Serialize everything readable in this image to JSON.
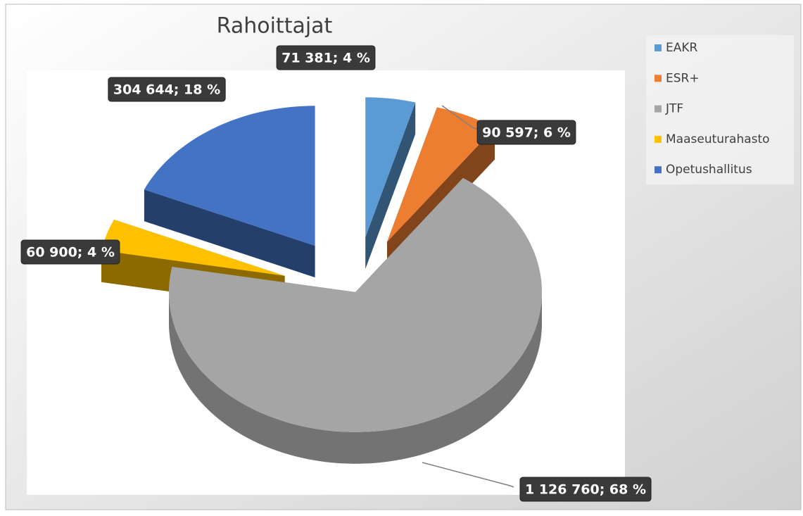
{
  "chart_data": {
    "type": "pie",
    "title": "Rahoittajat",
    "categories": [
      "EAKR",
      "ESR+",
      "JTF",
      "Maaseuturahasto",
      "Opetushallitus"
    ],
    "values": [
      71381,
      90597,
      1126760,
      60900,
      304644
    ],
    "value_labels": [
      "71 381; 4 %",
      "90 597; 6 %",
      "1 126 760; 68 %",
      "60 900; 4 %",
      "304 644; 18 %"
    ],
    "colors": [
      "#5b9bd5",
      "#ed7d31",
      "#a5a5a5",
      "#ffc000",
      "#4472c4"
    ],
    "legend": "right"
  }
}
